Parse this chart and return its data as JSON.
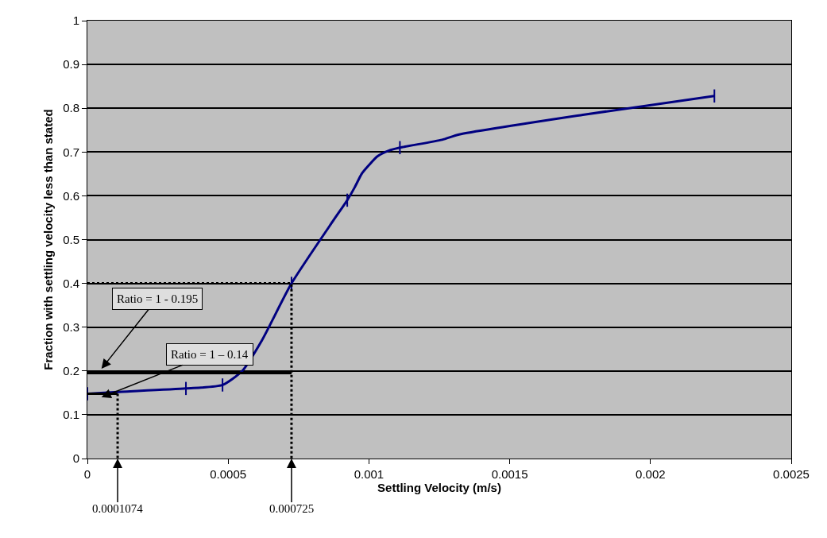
{
  "chart_data": {
    "type": "line",
    "xlabel": "Settling Velocity (m/s)",
    "ylabel": "Fraction with settling velocity less than stated",
    "xlim": [
      0,
      0.0025
    ],
    "xticks": [
      0,
      0.0005,
      0.001,
      0.0015,
      0.002,
      0.0025
    ],
    "ylim": [
      0,
      1
    ],
    "yticks": [
      0,
      0.1,
      0.2,
      0.3,
      0.4,
      0.5,
      0.6,
      0.7,
      0.8,
      0.9,
      1
    ],
    "grid": "y",
    "series": [
      {
        "color": "#000080",
        "x": [
          0,
          0.0001074,
          0.00035,
          0.00048,
          0.00055,
          0.00062,
          0.000725,
          0.000875,
          0.000923,
          0.00095,
          0.000974,
          0.001,
          0.00103,
          0.00107,
          0.00111,
          0.00126,
          0.00132,
          0.00176,
          0.002227
        ],
        "values": [
          0.148,
          0.152,
          0.16,
          0.168,
          0.2,
          0.27,
          0.4,
          0.545,
          0.59,
          0.62,
          0.65,
          0.67,
          0.69,
          0.703,
          0.71,
          0.728,
          0.74,
          0.785,
          0.828
        ],
        "errors": [
          0.015,
          null,
          0.015,
          0.015,
          null,
          null,
          0.015,
          null,
          0.015,
          null,
          null,
          null,
          null,
          null,
          0.015,
          null,
          null,
          null,
          0.015
        ]
      },
      {
        "color": "#000000",
        "line_style": "dotted",
        "x": [
          0,
          0.000725,
          0.000725
        ],
        "values": [
          0.4,
          0.4,
          0
        ]
      },
      {
        "color": "#000000",
        "line_style": "dotted",
        "x": [
          0.0001074,
          0.0001074
        ],
        "values": [
          0.148,
          0
        ]
      },
      {
        "color": "#000000",
        "line_style": "solid",
        "x": [
          0,
          0.000725
        ],
        "values": [
          0.195,
          0.195
        ]
      },
      {
        "color": "#000000",
        "line_style": "solid",
        "x": [
          0,
          0.0001074
        ],
        "values": [
          0.148,
          0.148
        ]
      }
    ],
    "annotations": [
      {
        "text": "Ratio = 1 - 0.195",
        "x": 5e-05,
        "y": 0.205
      },
      {
        "text": "Ratio = 1 – 0.14",
        "x": 5e-05,
        "y": 0.14
      },
      {
        "text": "0.0001074",
        "x": 0.0001074,
        "y": 0
      },
      {
        "text": "0.000725",
        "x": 0.000725,
        "y": 0
      }
    ]
  }
}
